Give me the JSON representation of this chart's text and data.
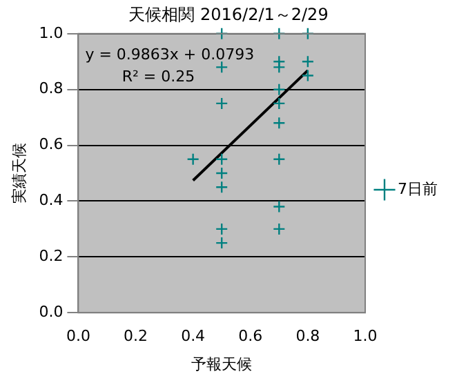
{
  "chart_data": {
    "type": "scatter",
    "title": "天候相関 2016/2/1～2/29",
    "xlabel": "予報天候",
    "ylabel": "実績天候",
    "series": [
      {
        "name": "7日前",
        "color": "#008080",
        "marker": "cross",
        "x": [
          0.4,
          0.5,
          0.5,
          0.5,
          0.5,
          0.5,
          0.5,
          0.5,
          0.5,
          0.7,
          0.7,
          0.7,
          0.7,
          0.7,
          0.7,
          0.7,
          0.7,
          0.7,
          0.8,
          0.8,
          0.8
        ],
        "values": [
          0.55,
          1.0,
          0.88,
          0.75,
          0.55,
          0.5,
          0.45,
          0.3,
          0.25,
          1.0,
          0.9,
          0.88,
          0.8,
          0.75,
          0.68,
          0.55,
          0.38,
          0.3,
          1.0,
          0.9,
          0.85
        ]
      },
      {
        "type": "line",
        "color": "#000000",
        "marker": "none",
        "x": [
          0.4,
          0.8
        ],
        "values": [
          0.474,
          0.868
        ]
      }
    ],
    "annotations": [
      "y = 0.9863x + 0.0793",
      "R² = 0.25"
    ],
    "xlim": [
      0,
      1
    ],
    "xticks": [
      {
        "value": 0,
        "label": "0.0"
      },
      {
        "value": 0.2,
        "label": "0.2"
      },
      {
        "value": 0.4,
        "label": "0.4"
      },
      {
        "value": 0.6,
        "label": "0.6"
      },
      {
        "value": 0.8,
        "label": "0.8"
      },
      {
        "value": 1,
        "label": "1.0"
      }
    ],
    "ylim": [
      0,
      1
    ],
    "yticks": [
      {
        "value": 0,
        "label": "0.0"
      },
      {
        "value": 0.2,
        "label": "0.2"
      },
      {
        "value": 0.4,
        "label": "0.4"
      },
      {
        "value": 0.6,
        "label": "0.6"
      },
      {
        "value": 0.8,
        "label": "0.8"
      },
      {
        "value": 1,
        "label": "1.0"
      }
    ],
    "grid": "y",
    "legend": "right"
  }
}
